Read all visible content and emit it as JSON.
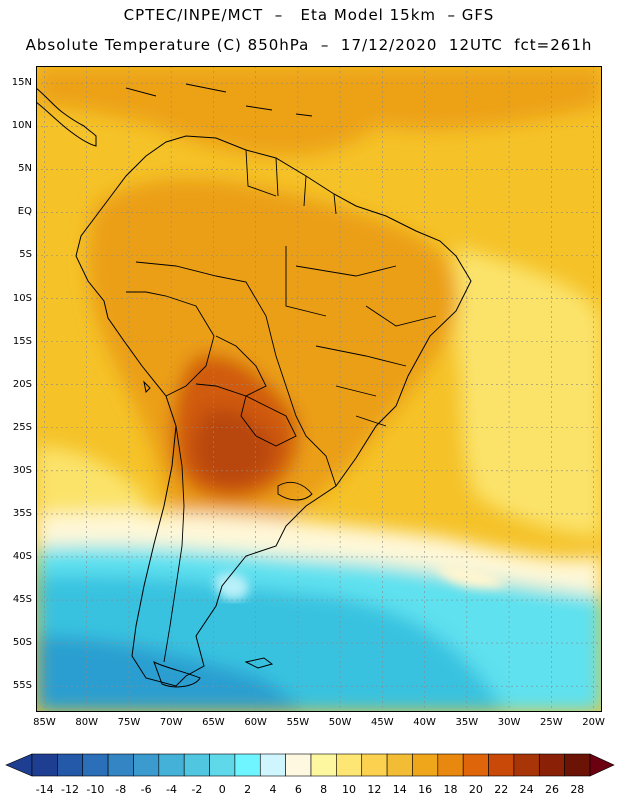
{
  "header": {
    "line1": "CPTEC/INPE/MCT  –   Eta Model 15km  – GFS",
    "line2": "Absolute Temperature (C) 850hPa  –  17/12/2020  12UTC  fct=261h"
  },
  "map": {
    "lon_range": [
      -86,
      -19
    ],
    "lat_range": [
      -58,
      17
    ],
    "lat_ticks": [
      {
        "value": 15,
        "label": "15N"
      },
      {
        "value": 10,
        "label": "10N"
      },
      {
        "value": 5,
        "label": "5N"
      },
      {
        "value": 0,
        "label": "EQ"
      },
      {
        "value": -5,
        "label": "5S"
      },
      {
        "value": -10,
        "label": "10S"
      },
      {
        "value": -15,
        "label": "15S"
      },
      {
        "value": -20,
        "label": "20S"
      },
      {
        "value": -25,
        "label": "25S"
      },
      {
        "value": -30,
        "label": "30S"
      },
      {
        "value": -35,
        "label": "35S"
      },
      {
        "value": -40,
        "label": "40S"
      },
      {
        "value": -45,
        "label": "45S"
      },
      {
        "value": -50,
        "label": "50S"
      },
      {
        "value": -55,
        "label": "55S"
      }
    ],
    "lon_ticks": [
      {
        "value": -85,
        "label": "85W"
      },
      {
        "value": -80,
        "label": "80W"
      },
      {
        "value": -75,
        "label": "75W"
      },
      {
        "value": -70,
        "label": "70W"
      },
      {
        "value": -65,
        "label": "65W"
      },
      {
        "value": -60,
        "label": "60W"
      },
      {
        "value": -55,
        "label": "55W"
      },
      {
        "value": -50,
        "label": "50W"
      },
      {
        "value": -45,
        "label": "45W"
      },
      {
        "value": -40,
        "label": "40W"
      },
      {
        "value": -35,
        "label": "35W"
      },
      {
        "value": -30,
        "label": "30W"
      },
      {
        "value": -25,
        "label": "25W"
      },
      {
        "value": -20,
        "label": "20W"
      }
    ],
    "gridlines": true,
    "gridline_step_deg": 5,
    "field_colors": {
      "ocean_warm": "#f5c228",
      "ocean_mild": "#fbe36a",
      "land_warm": "#eb9f16",
      "hot_core": "#d05a0c",
      "hottest": "#b8460a",
      "cool_band": "#fff8d8",
      "cold": "#5fe1ef",
      "colder": "#38c2e0",
      "coldest": "#2a9ed0"
    }
  },
  "colorbar": {
    "labels": [
      "-14",
      "-12",
      "-10",
      "-8",
      "-6",
      "-4",
      "-2",
      "0",
      "2",
      "4",
      "6",
      "8",
      "10",
      "12",
      "14",
      "16",
      "18",
      "20",
      "22",
      "24",
      "26",
      "28"
    ],
    "colors": [
      "#1e3f91",
      "#2458a8",
      "#2b6fb8",
      "#3385c4",
      "#3b9bcf",
      "#44b1d8",
      "#50c6e0",
      "#5fd9ea",
      "#6ef5ff",
      "#cff6ff",
      "#fff8e0",
      "#fdf7a0",
      "#fde673",
      "#fbd14f",
      "#f3bc35",
      "#f0a61a",
      "#e8880f",
      "#de650a",
      "#c94909",
      "#a83508",
      "#8a2106",
      "#6b1304"
    ],
    "arrow_low_color": "#1e3f91",
    "arrow_high_color": "#6b0010"
  }
}
